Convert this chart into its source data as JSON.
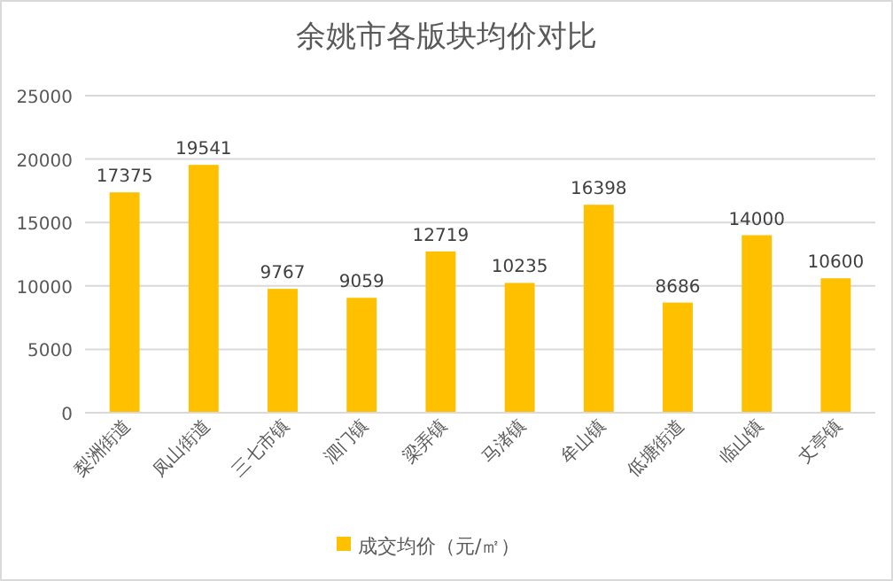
{
  "chart_data": {
    "type": "bar",
    "title": "余姚市各版块均价对比",
    "categories": [
      "梨洲街道",
      "凤山街道",
      "三七市镇",
      "泗门镇",
      "梁弄镇",
      "马渚镇",
      "牟山镇",
      "低塘街道",
      "临山镇",
      "丈亭镇"
    ],
    "series": [
      {
        "name": "成交均价（元/㎡）",
        "color": "#ffc000",
        "values": [
          17375,
          19541,
          9767,
          9059,
          12719,
          10235,
          16398,
          8686,
          14000,
          10600
        ]
      }
    ],
    "ylim": [
      0,
      25000
    ],
    "yticks": [
      0,
      5000,
      10000,
      15000,
      20000,
      25000
    ],
    "grid": "y",
    "legend": "bottom",
    "data_labels": true
  }
}
